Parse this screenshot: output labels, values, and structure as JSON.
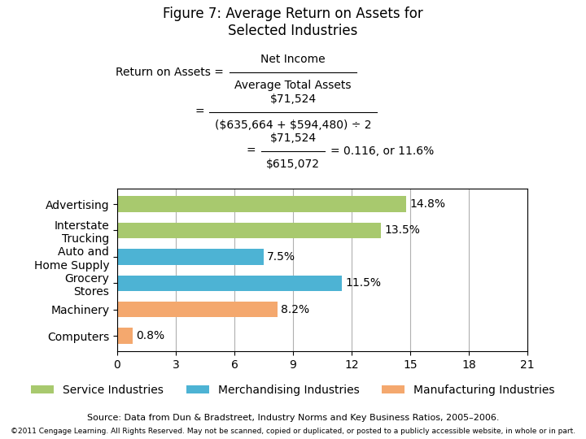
{
  "chart_data": {
    "type": "bar",
    "orientation": "horizontal",
    "title": "Figure 7: Average Return on Assets for\nSelected Industries",
    "annotations": [
      {
        "lead": "Return on Assets =",
        "numerator": "Net Income",
        "denominator": "Average Total Assets"
      },
      {
        "lead": "=",
        "numerator": "$71,524",
        "denominator": "($635,664 + $594,480) ÷ 2"
      },
      {
        "lead": "=",
        "numerator": "$71,524",
        "denominator": "$615,072",
        "result": "= 0.116, or 11.6%"
      }
    ],
    "categories": [
      "Advertising",
      "Interstate\nTrucking",
      "Auto and\nHome Supply",
      "Grocery\nStores",
      "Machinery",
      "Computers"
    ],
    "series": [
      {
        "name": "Service Industries",
        "color": "#a8c96e",
        "values": [
          14.8,
          13.5,
          null,
          null,
          null,
          null
        ],
        "value_labels": [
          "14.8%",
          "13.5%",
          null,
          null,
          null,
          null
        ]
      },
      {
        "name": "Merchandising Industries",
        "color": "#4db3d4",
        "values": [
          null,
          null,
          7.5,
          11.5,
          null,
          null
        ],
        "value_labels": [
          null,
          null,
          "7.5%",
          "11.5%",
          null,
          null
        ]
      },
      {
        "name": "Manufacturing Industries",
        "color": "#f4a86e",
        "values": [
          null,
          null,
          null,
          null,
          8.2,
          0.8
        ],
        "value_labels": [
          null,
          null,
          null,
          null,
          "8.2%",
          "0.8%"
        ]
      }
    ],
    "xlim": [
      0,
      21
    ],
    "xticks": [
      0,
      3,
      6,
      9,
      12,
      15,
      18,
      21
    ],
    "grid": true,
    "legend": "lower center",
    "data_labels": true,
    "source": "Source: Data from Dun & Bradstreet, Industry Norms and Key Business Ratios, 2005–2006.",
    "copyright": "©2011 Cengage Learning. All Rights Reserved. May not be scanned, copied or duplicated, or posted to a publicly accessible website, in whole or in part."
  }
}
